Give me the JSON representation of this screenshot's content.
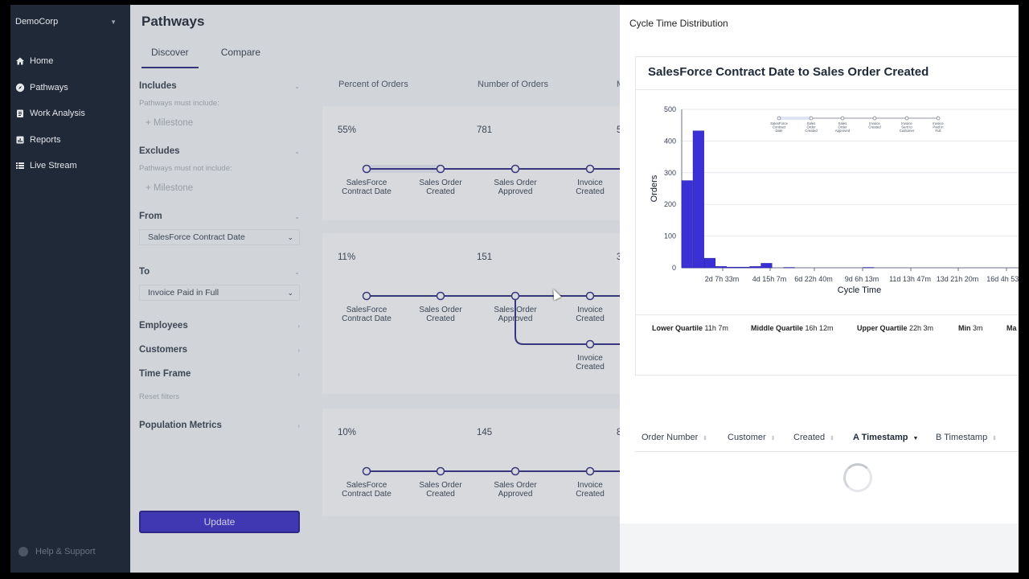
{
  "sidebar": {
    "org": "DemoCorp",
    "items": [
      {
        "label": "Home",
        "icon": "home-icon"
      },
      {
        "label": "Pathways",
        "icon": "compass-icon"
      },
      {
        "label": "Work Analysis",
        "icon": "clipboard-icon"
      },
      {
        "label": "Reports",
        "icon": "chart-icon"
      },
      {
        "label": "Live Stream",
        "icon": "list-icon"
      }
    ],
    "help": "Help & Support"
  },
  "main": {
    "title": "Pathways",
    "tabs": [
      {
        "label": "Discover"
      },
      {
        "label": "Compare"
      }
    ],
    "filters": {
      "includes": {
        "label": "Includes",
        "sub": "Pathways must include:",
        "milestone": "+ Milestone"
      },
      "excludes": {
        "label": "Excludes",
        "sub": "Pathways must not include:",
        "milestone": "+ Milestone"
      },
      "from": {
        "label": "From",
        "value": "SalesForce Contract Date"
      },
      "to": {
        "label": "To",
        "value": "Invoice Paid in Full"
      },
      "employees": "Employees",
      "customers": "Customers",
      "time_frame": "Time Frame",
      "reset": "Reset filters",
      "population": "Population Metrics"
    },
    "update": "Update",
    "columns": [
      {
        "label": "Percent of Orders"
      },
      {
        "label": "Number of Orders"
      },
      {
        "label": "M"
      }
    ],
    "pathways": [
      {
        "pct": "55%",
        "count": "781",
        "extra": "5",
        "stages": [
          "SalesForce Contract Date",
          "Sales Order Created",
          "Sales Order Approved",
          "Invoice Created"
        ]
      },
      {
        "pct": "11%",
        "count": "151",
        "extra": "3",
        "stages": [
          "SalesForce Contract Date",
          "Sales Order Created",
          "Sales Order Approved",
          "Invoice Created"
        ],
        "branch": "Invoice Created"
      },
      {
        "pct": "10%",
        "count": "145",
        "extra": "8",
        "stages": [
          "SalesForce Contract Date",
          "Sales Order Created",
          "Sales Order Approved",
          "Invoice Created"
        ]
      }
    ]
  },
  "drawer": {
    "title": "Cycle Time Distribution",
    "chart_title": "SalesForce Contract Date to Sales Order Created",
    "mini_stages": [
      "SalesForce Contract Date",
      "Sales Order Created",
      "Sales Order Approved",
      "Invoice Created",
      "Invoice Sent to Customer",
      "Invoice Paid in Full"
    ],
    "stats": [
      {
        "label": "Lower Quartile",
        "value": "11h 7m"
      },
      {
        "label": "Middle Quartile",
        "value": "16h 12m"
      },
      {
        "label": "Upper Quartile",
        "value": "22h 3m"
      },
      {
        "label": "Min",
        "value": "3m"
      },
      {
        "label": "Ma",
        "value": ""
      }
    ],
    "table_columns": [
      {
        "label": "Order Number"
      },
      {
        "label": "Customer"
      },
      {
        "label": "Created"
      },
      {
        "label": "A Timestamp"
      },
      {
        "label": "B Timestamp"
      }
    ]
  },
  "chart_data": {
    "type": "bar",
    "title": "",
    "xlabel": "Cycle Time",
    "ylabel": "Orders",
    "ylim": [
      0,
      500
    ],
    "yticks": [
      0,
      100,
      200,
      300,
      400,
      500
    ],
    "xtick_labels": [
      "2d 7h 33m",
      "4d 15h 7m",
      "6d 22h 40m",
      "9d 6h 13m",
      "11d 13h 47m",
      "13d 21h 20m",
      "16d 4h 53m"
    ],
    "bin_width_days": 0.583,
    "values": [
      275,
      432,
      30,
      4,
      2,
      2,
      4,
      14,
      0,
      1,
      0,
      0,
      0,
      0,
      0,
      0,
      1,
      0,
      0,
      0
    ],
    "color": "#3b30d6",
    "grid": true
  }
}
